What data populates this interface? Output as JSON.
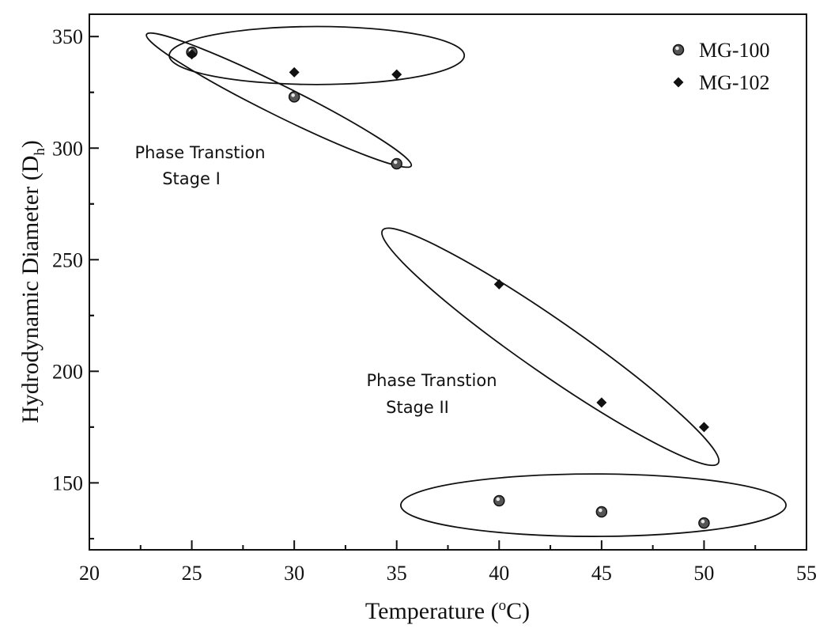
{
  "chart_data": {
    "type": "scatter",
    "title": "",
    "xlabel": "Temperature (",
    "xlabel_sup": "o",
    "xlabel_tail": "C)",
    "ylabel": "Hydrodynamic Diameter (D",
    "ylabel_sub": "h",
    "ylabel_tail": ")",
    "xlim": [
      20,
      55
    ],
    "ylim": [
      120,
      360
    ],
    "xticks": [
      "20",
      "25",
      "30",
      "35",
      "40",
      "45",
      "50",
      "55"
    ],
    "yticks": [
      "150",
      "200",
      "250",
      "300",
      "350"
    ],
    "legend_position": "top-right",
    "grid": false,
    "series": [
      {
        "name": "MG-100",
        "marker": "circle",
        "x": [
          25,
          30,
          35,
          40,
          45,
          50
        ],
        "y": [
          343,
          323,
          293,
          142,
          137,
          132
        ]
      },
      {
        "name": "MG-102",
        "marker": "diamond",
        "x": [
          25,
          30,
          35,
          40,
          45,
          50
        ],
        "y": [
          342,
          334,
          333,
          239,
          186,
          175
        ]
      }
    ],
    "annotations": [
      {
        "line1": "Phase Transtion",
        "line2": "Stage I"
      },
      {
        "line1": "Phase Transtion",
        "line2": "Stage II"
      }
    ],
    "ellipses": [
      {
        "cx": 31.1,
        "cy": 341.5,
        "rx": 7.2,
        "ry": 13
      },
      {
        "cx": 29.4,
        "cy": 321,
        "len": 15.5,
        "ry": 6,
        "from": [
          23,
          350
        ],
        "to": [
          35.5,
          293
        ]
      },
      {
        "cx": 42.2,
        "cy": 212,
        "from": [
          34.5,
          262
        ],
        "to": [
          50.5,
          160
        ]
      },
      {
        "cx": 44.6,
        "cy": 140,
        "rx": 9.4,
        "ry": 14
      }
    ]
  }
}
